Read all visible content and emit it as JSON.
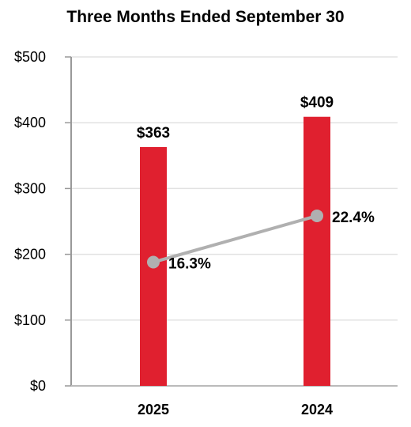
{
  "chart_data": {
    "type": "bar",
    "title": "Three Months Ended September 30",
    "categories": [
      "2025",
      "2024"
    ],
    "ylim": [
      0,
      500
    ],
    "yticks": [
      0,
      100,
      200,
      300,
      400,
      500
    ],
    "ytick_labels": [
      "$0",
      "$100",
      "$200",
      "$300",
      "$400",
      "$500"
    ],
    "grid": true,
    "series": [
      {
        "type": "bar",
        "values": [
          363,
          409
        ],
        "labels": [
          "$363",
          "$409"
        ],
        "color": "#e0202f"
      },
      {
        "type": "line",
        "values": [
          16.3,
          22.4
        ],
        "labels": [
          "16.3%",
          "22.4%"
        ],
        "color": "#b0b0b0"
      }
    ]
  }
}
